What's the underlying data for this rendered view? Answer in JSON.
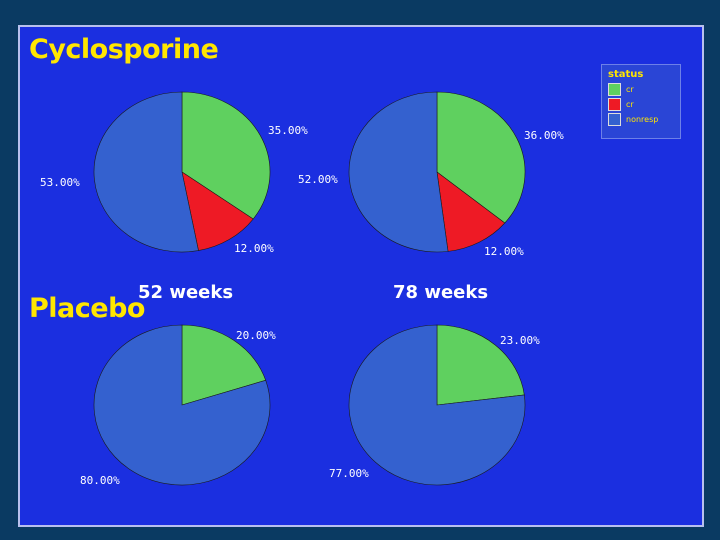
{
  "groups": {
    "cyclosporine": "Cyclosporine",
    "placebo": "Placebo"
  },
  "timepoints": {
    "week52": "52 weeks",
    "week78": "78 weeks"
  },
  "legend": {
    "title": "status",
    "items": [
      {
        "label": "cr",
        "color": "#5fd05f"
      },
      {
        "label": "cr",
        "color": "#ee1a25"
      },
      {
        "label": "nonresp",
        "color": "#3461cf"
      }
    ]
  },
  "chart_data": [
    {
      "type": "pie",
      "group": "Cyclosporine",
      "timepoint": "52 weeks",
      "slices": [
        {
          "legend_index": 0,
          "value": 35.0,
          "label": "35.00%",
          "color": "#5fd05f"
        },
        {
          "legend_index": 1,
          "value": 12.0,
          "label": "12.00%",
          "color": "#ee1a25"
        },
        {
          "legend_index": 2,
          "value": 53.0,
          "label": "53.00%",
          "color": "#3461cf"
        }
      ]
    },
    {
      "type": "pie",
      "group": "Cyclosporine",
      "timepoint": "78 weeks",
      "slices": [
        {
          "legend_index": 0,
          "value": 36.0,
          "label": "36.00%",
          "color": "#5fd05f"
        },
        {
          "legend_index": 1,
          "value": 12.0,
          "label": "12.00%",
          "color": "#ee1a25"
        },
        {
          "legend_index": 2,
          "value": 52.0,
          "label": "52.00%",
          "color": "#3461cf"
        }
      ]
    },
    {
      "type": "pie",
      "group": "Placebo",
      "timepoint": "52 weeks",
      "slices": [
        {
          "legend_index": 0,
          "value": 20.0,
          "label": "20.00%",
          "color": "#5fd05f"
        },
        {
          "legend_index": 2,
          "value": 80.0,
          "label": "80.00%",
          "color": "#3461cf"
        }
      ]
    },
    {
      "type": "pie",
      "group": "Placebo",
      "timepoint": "78 weeks",
      "slices": [
        {
          "legend_index": 0,
          "value": 23.0,
          "label": "23.00%",
          "color": "#5fd05f"
        },
        {
          "legend_index": 2,
          "value": 77.0,
          "label": "77.00%",
          "color": "#3461cf"
        }
      ]
    }
  ]
}
